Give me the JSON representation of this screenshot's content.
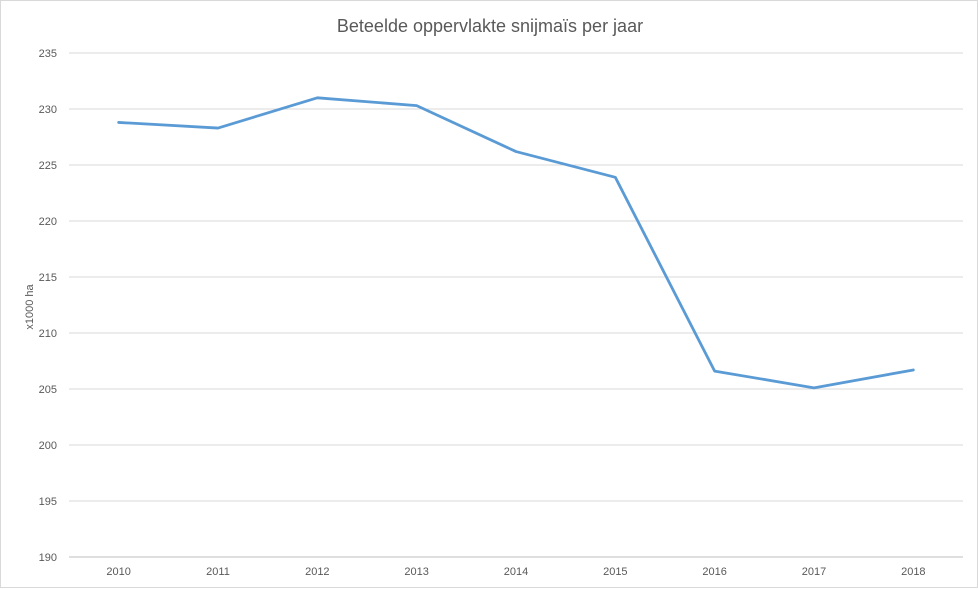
{
  "chart_data": {
    "type": "line",
    "title": "Beteelde  oppervlakte snijmaïs per jaar",
    "xlabel": "",
    "ylabel": "x1000 ha",
    "categories": [
      "2010",
      "2011",
      "2012",
      "2013",
      "2014",
      "2015",
      "2016",
      "2017",
      "2018"
    ],
    "series": [
      {
        "values": [
          228.8,
          228.3,
          231.0,
          230.3,
          226.2,
          223.9,
          206.6,
          205.1,
          206.7
        ],
        "color": "#5b9bd5"
      }
    ],
    "ylim": [
      190,
      235
    ],
    "yticks": [
      190,
      195,
      200,
      205,
      210,
      215,
      220,
      225,
      230,
      235
    ],
    "grid": true,
    "legend": "none"
  }
}
